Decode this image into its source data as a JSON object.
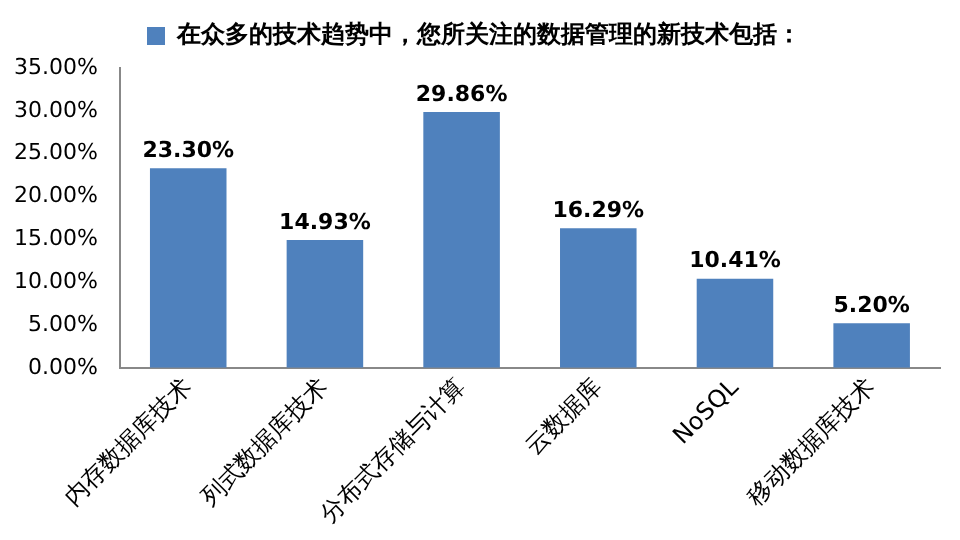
{
  "chart_data": {
    "type": "bar",
    "categories": [
      "内存数据库技术",
      "列式数据库技术",
      "分布式存储与计算",
      "云数据库",
      "NoSQL",
      "移动数据库技术"
    ],
    "series": [
      {
        "name": "在众多的技术趋势中，您所关注的数据管理的新技术包括：",
        "color": "#4f81bd",
        "values": [
          23.3,
          14.93,
          29.86,
          16.29,
          10.41,
          5.2
        ],
        "value_labels": [
          "23.30%",
          "14.93%",
          "29.86%",
          "16.29%",
          "10.41%",
          "5.20%"
        ]
      }
    ],
    "ylim": [
      0,
      35
    ],
    "yticks": [
      {
        "value": 0,
        "label": "0.00%"
      },
      {
        "value": 5,
        "label": "5.00%"
      },
      {
        "value": 10,
        "label": "10.00%"
      },
      {
        "value": 15,
        "label": "15.00%"
      },
      {
        "value": 20,
        "label": "20.00%"
      },
      {
        "value": 25,
        "label": "25.00%"
      },
      {
        "value": 30,
        "label": "30.00%"
      },
      {
        "value": 35,
        "label": "35.00%"
      }
    ],
    "grid": false,
    "legend": "top"
  }
}
